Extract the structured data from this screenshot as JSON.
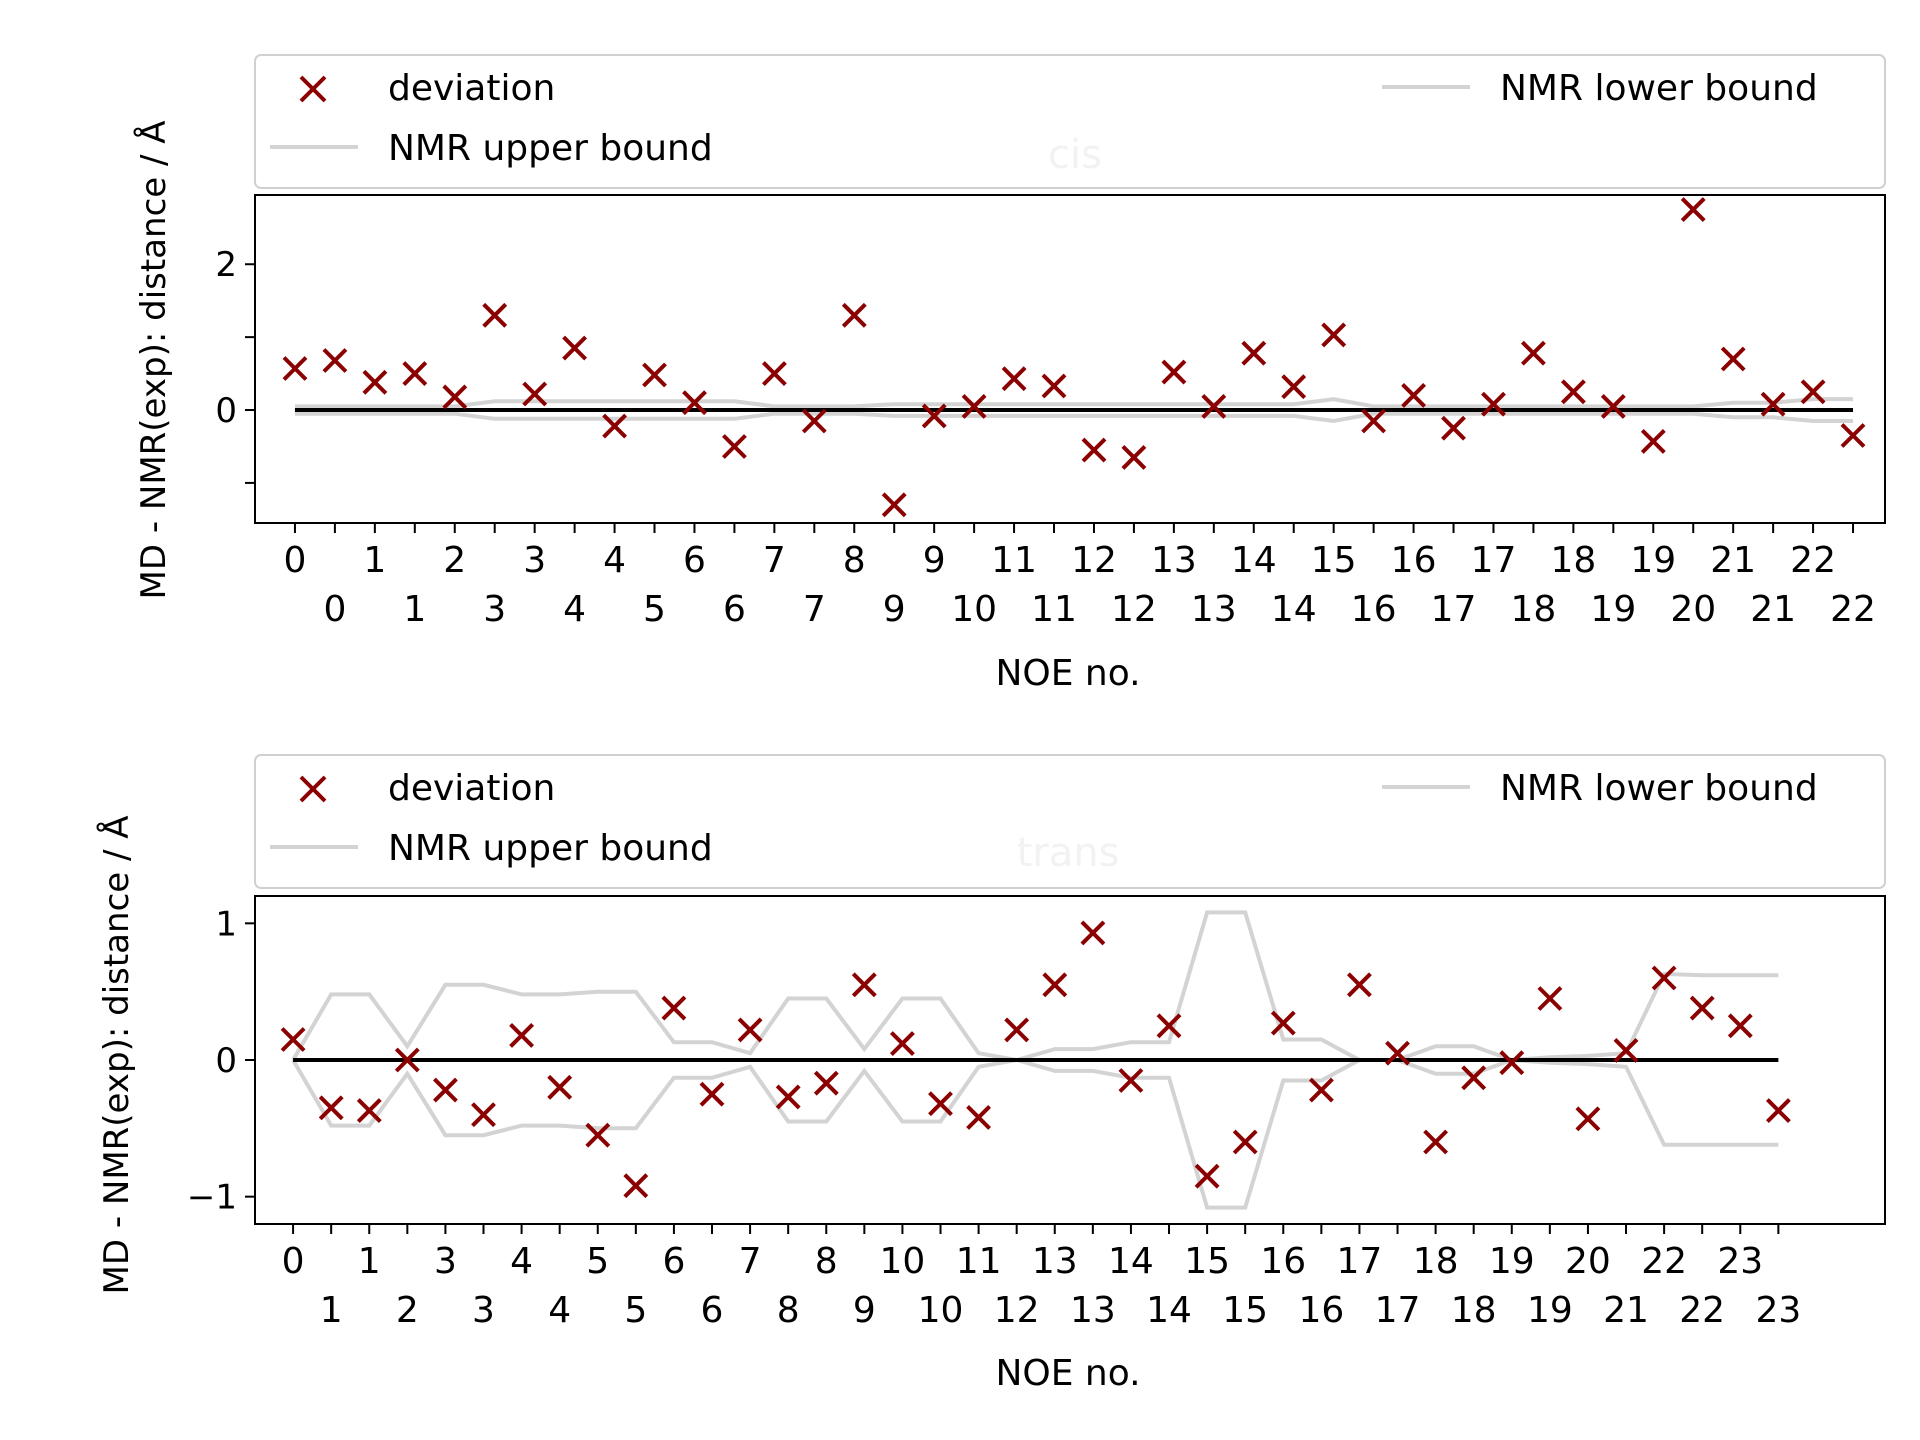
{
  "chart_data": [
    {
      "type": "scatter",
      "title": "cis",
      "xlabel": "NOE no.",
      "ylabel": "MD - NMR(exp): distance / Å",
      "ylim": [
        -1.55,
        2.95
      ],
      "yticks": [
        -1,
        0,
        1,
        2
      ],
      "ytick_labels": [
        "",
        "0",
        "",
        "2"
      ],
      "xlim": [
        -1.0,
        39.8
      ],
      "grid": false,
      "legend_placement": "top",
      "legend": {
        "deviation": "deviation",
        "upper": "NMR upper bound",
        "lower": "NMR lower bound"
      },
      "xtick_labels": [
        {
          "top": "0",
          "bottom": ""
        },
        {
          "top": "",
          "bottom": "0"
        },
        {
          "top": "1",
          "bottom": ""
        },
        {
          "top": "",
          "bottom": "1"
        },
        {
          "top": "2",
          "bottom": ""
        },
        {
          "top": "",
          "bottom": "3"
        },
        {
          "top": "3",
          "bottom": ""
        },
        {
          "top": "",
          "bottom": "4"
        },
        {
          "top": "4",
          "bottom": ""
        },
        {
          "top": "",
          "bottom": "5"
        },
        {
          "top": "6",
          "bottom": ""
        },
        {
          "top": "",
          "bottom": "6"
        },
        {
          "top": "7",
          "bottom": ""
        },
        {
          "top": "",
          "bottom": "7"
        },
        {
          "top": "8",
          "bottom": ""
        },
        {
          "top": "",
          "bottom": "9"
        },
        {
          "top": "9",
          "bottom": ""
        },
        {
          "top": "",
          "bottom": "10"
        },
        {
          "top": "11",
          "bottom": ""
        },
        {
          "top": "",
          "bottom": "11"
        },
        {
          "top": "12",
          "bottom": ""
        },
        {
          "top": "",
          "bottom": "12"
        },
        {
          "top": "13",
          "bottom": ""
        },
        {
          "top": "",
          "bottom": "13"
        },
        {
          "top": "14",
          "bottom": ""
        },
        {
          "top": "",
          "bottom": "14"
        },
        {
          "top": "15",
          "bottom": ""
        },
        {
          "top": "",
          "bottom": "16"
        },
        {
          "top": "16",
          "bottom": ""
        },
        {
          "top": "",
          "bottom": "17"
        },
        {
          "top": "17",
          "bottom": ""
        },
        {
          "top": "",
          "bottom": "18"
        },
        {
          "top": "18",
          "bottom": ""
        },
        {
          "top": "",
          "bottom": "19"
        },
        {
          "top": "19",
          "bottom": ""
        },
        {
          "top": "",
          "bottom": "20"
        },
        {
          "top": "21",
          "bottom": ""
        },
        {
          "top": "",
          "bottom": "21"
        },
        {
          "top": "22",
          "bottom": ""
        },
        {
          "top": "",
          "bottom": "22"
        }
      ],
      "deviation": [
        0.57,
        0.68,
        0.38,
        0.5,
        0.18,
        1.3,
        0.22,
        0.85,
        -0.22,
        0.48,
        0.1,
        -0.5,
        0.5,
        -0.15,
        1.3,
        -1.3,
        -0.08,
        0.05,
        0.43,
        0.33,
        -0.55,
        -0.65,
        0.52,
        0.05,
        0.78,
        0.32,
        1.03,
        -0.15,
        0.2,
        -0.25,
        0.08,
        0.78,
        0.25,
        0.05,
        -0.43,
        2.75,
        0.7,
        0.08,
        0.25,
        -0.35
      ],
      "upper_bound": [
        0.05,
        0.05,
        0.05,
        0.05,
        0.05,
        0.12,
        0.12,
        0.12,
        0.12,
        0.12,
        0.12,
        0.12,
        0.05,
        0.05,
        0.05,
        0.08,
        0.08,
        0.08,
        0.08,
        0.08,
        0.08,
        0.08,
        0.08,
        0.08,
        0.08,
        0.08,
        0.15,
        0.05,
        0.05,
        0.05,
        0.05,
        0.05,
        0.05,
        0.05,
        0.05,
        0.05,
        0.1,
        0.1,
        0.15,
        0.15
      ],
      "lower_bound": [
        -0.05,
        -0.05,
        -0.05,
        -0.05,
        -0.05,
        -0.12,
        -0.12,
        -0.12,
        -0.12,
        -0.12,
        -0.12,
        -0.12,
        -0.05,
        -0.05,
        -0.05,
        -0.08,
        -0.08,
        -0.08,
        -0.08,
        -0.08,
        -0.08,
        -0.08,
        -0.08,
        -0.08,
        -0.08,
        -0.08,
        -0.15,
        -0.05,
        -0.05,
        -0.05,
        -0.05,
        -0.05,
        -0.05,
        -0.05,
        -0.05,
        -0.05,
        -0.1,
        -0.1,
        -0.15,
        -0.15
      ],
      "colors": {
        "deviation": "#8b0000",
        "bounds": "#d3d3d3",
        "zero": "#000000",
        "title": "#bfbfbf"
      }
    },
    {
      "type": "scatter",
      "title": "trans",
      "xlabel": "NOE no.",
      "ylabel": "MD - NMR(exp): distance / Å",
      "ylim": [
        -1.2,
        1.2
      ],
      "yticks": [
        -1,
        0,
        1
      ],
      "ytick_labels": [
        "−1",
        "0",
        "1"
      ],
      "xlim": [
        -1.0,
        41.8
      ],
      "grid": false,
      "legend_placement": "top",
      "legend": {
        "deviation": "deviation",
        "upper": "NMR upper bound",
        "lower": "NMR lower bound"
      },
      "xtick_labels": [
        {
          "top": "0",
          "bottom": ""
        },
        {
          "top": "",
          "bottom": "1"
        },
        {
          "top": "1",
          "bottom": ""
        },
        {
          "top": "",
          "bottom": "2"
        },
        {
          "top": "3",
          "bottom": ""
        },
        {
          "top": "",
          "bottom": "3"
        },
        {
          "top": "4",
          "bottom": ""
        },
        {
          "top": "",
          "bottom": "4"
        },
        {
          "top": "5",
          "bottom": ""
        },
        {
          "top": "",
          "bottom": "5"
        },
        {
          "top": "6",
          "bottom": ""
        },
        {
          "top": "",
          "bottom": "6"
        },
        {
          "top": "7",
          "bottom": ""
        },
        {
          "top": "",
          "bottom": "8"
        },
        {
          "top": "8",
          "bottom": ""
        },
        {
          "top": "",
          "bottom": "9"
        },
        {
          "top": "10",
          "bottom": ""
        },
        {
          "top": "",
          "bottom": "10"
        },
        {
          "top": "11",
          "bottom": ""
        },
        {
          "top": "",
          "bottom": "12"
        },
        {
          "top": "13",
          "bottom": ""
        },
        {
          "top": "",
          "bottom": "13"
        },
        {
          "top": "14",
          "bottom": ""
        },
        {
          "top": "",
          "bottom": "14"
        },
        {
          "top": "15",
          "bottom": ""
        },
        {
          "top": "",
          "bottom": "15"
        },
        {
          "top": "16",
          "bottom": ""
        },
        {
          "top": "",
          "bottom": "16"
        },
        {
          "top": "17",
          "bottom": ""
        },
        {
          "top": "",
          "bottom": "17"
        },
        {
          "top": "18",
          "bottom": ""
        },
        {
          "top": "",
          "bottom": "18"
        },
        {
          "top": "19",
          "bottom": ""
        },
        {
          "top": "",
          "bottom": "19"
        },
        {
          "top": "20",
          "bottom": ""
        },
        {
          "top": "",
          "bottom": "21"
        },
        {
          "top": "22",
          "bottom": ""
        },
        {
          "top": "",
          "bottom": "22"
        },
        {
          "top": "23",
          "bottom": ""
        },
        {
          "top": "",
          "bottom": "23"
        }
      ],
      "deviation": [
        0.15,
        -0.35,
        -0.37,
        0.0,
        -0.22,
        -0.4,
        0.18,
        -0.2,
        -0.55,
        -0.92,
        0.38,
        -0.25,
        0.22,
        -0.27,
        -0.17,
        0.55,
        0.12,
        -0.32,
        -0.42,
        0.22,
        0.55,
        0.93,
        -0.15,
        0.25,
        -0.85,
        -0.6,
        0.27,
        -0.22,
        0.55,
        0.05,
        -0.6,
        -0.13,
        -0.02,
        0.45,
        -0.43,
        0.07,
        0.6,
        0.38,
        0.25,
        -0.37
      ],
      "upper_bound": [
        0.0,
        0.48,
        0.48,
        0.1,
        0.55,
        0.55,
        0.48,
        0.48,
        0.5,
        0.5,
        0.13,
        0.13,
        0.05,
        0.45,
        0.45,
        0.08,
        0.45,
        0.45,
        0.05,
        0.0,
        0.08,
        0.08,
        0.13,
        0.13,
        1.08,
        1.08,
        0.15,
        0.15,
        0.0,
        0.0,
        0.1,
        0.1,
        0.0,
        0.02,
        0.03,
        0.05,
        0.63,
        0.62,
        0.62,
        0.62
      ],
      "lower_bound": [
        0.0,
        -0.48,
        -0.48,
        -0.1,
        -0.55,
        -0.55,
        -0.48,
        -0.48,
        -0.5,
        -0.5,
        -0.13,
        -0.13,
        -0.05,
        -0.45,
        -0.45,
        -0.08,
        -0.45,
        -0.45,
        -0.05,
        0.0,
        -0.08,
        -0.08,
        -0.13,
        -0.13,
        -1.08,
        -1.08,
        -0.15,
        -0.15,
        0.0,
        0.0,
        -0.1,
        -0.1,
        0.0,
        -0.02,
        -0.03,
        -0.05,
        -0.62,
        -0.62,
        -0.62,
        -0.62
      ],
      "colors": {
        "deviation": "#8b0000",
        "bounds": "#d3d3d3",
        "zero": "#000000",
        "title": "#bfbfbf"
      }
    }
  ]
}
